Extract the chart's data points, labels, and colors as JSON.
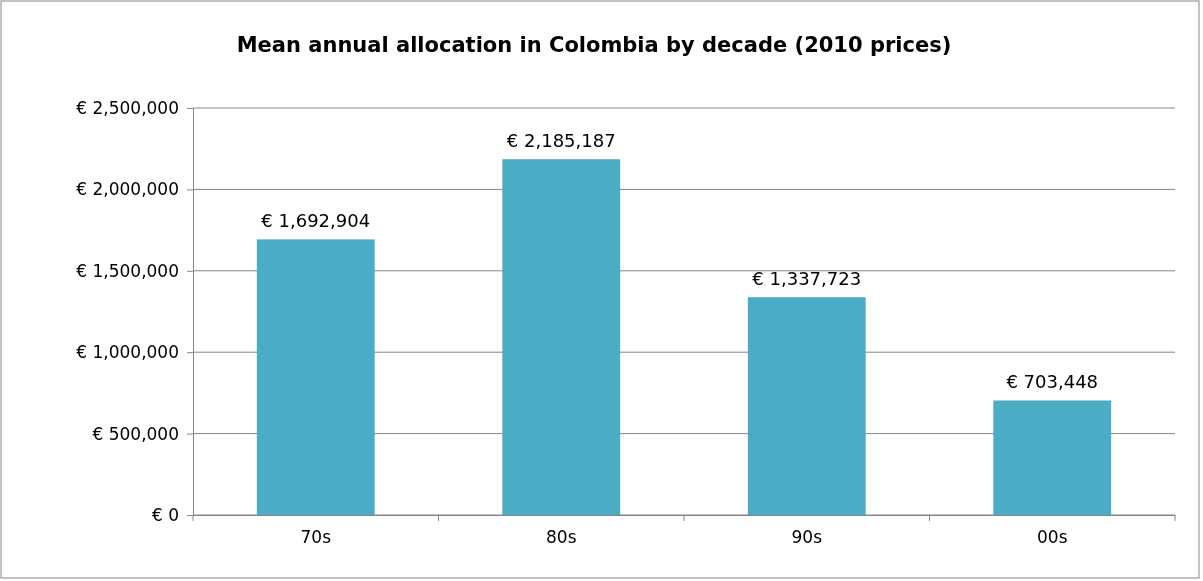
{
  "chart_data": {
    "type": "bar",
    "title": "Mean annual allocation in Colombia by decade (2010 prices)",
    "categories": [
      "70s",
      "80s",
      "90s",
      "00s"
    ],
    "values": [
      1692904,
      2185187,
      1337723,
      703448
    ],
    "value_labels": [
      "€ 1,692,904",
      "€ 2,185,187",
      "€ 1,337,723",
      "€ 703,448"
    ],
    "color": "#4bacc6",
    "ylim": [
      0,
      2500000
    ],
    "yticks": [
      {
        "value": 0,
        "label": "€ 0"
      },
      {
        "value": 500000,
        "label": "€ 500,000"
      },
      {
        "value": 1000000,
        "label": "€ 1,000,000"
      },
      {
        "value": 1500000,
        "label": "€ 1,500,000"
      },
      {
        "value": 2000000,
        "label": "€ 2,000,000"
      },
      {
        "value": 2500000,
        "label": "€ 2,500,000"
      }
    ],
    "grid": "y"
  }
}
